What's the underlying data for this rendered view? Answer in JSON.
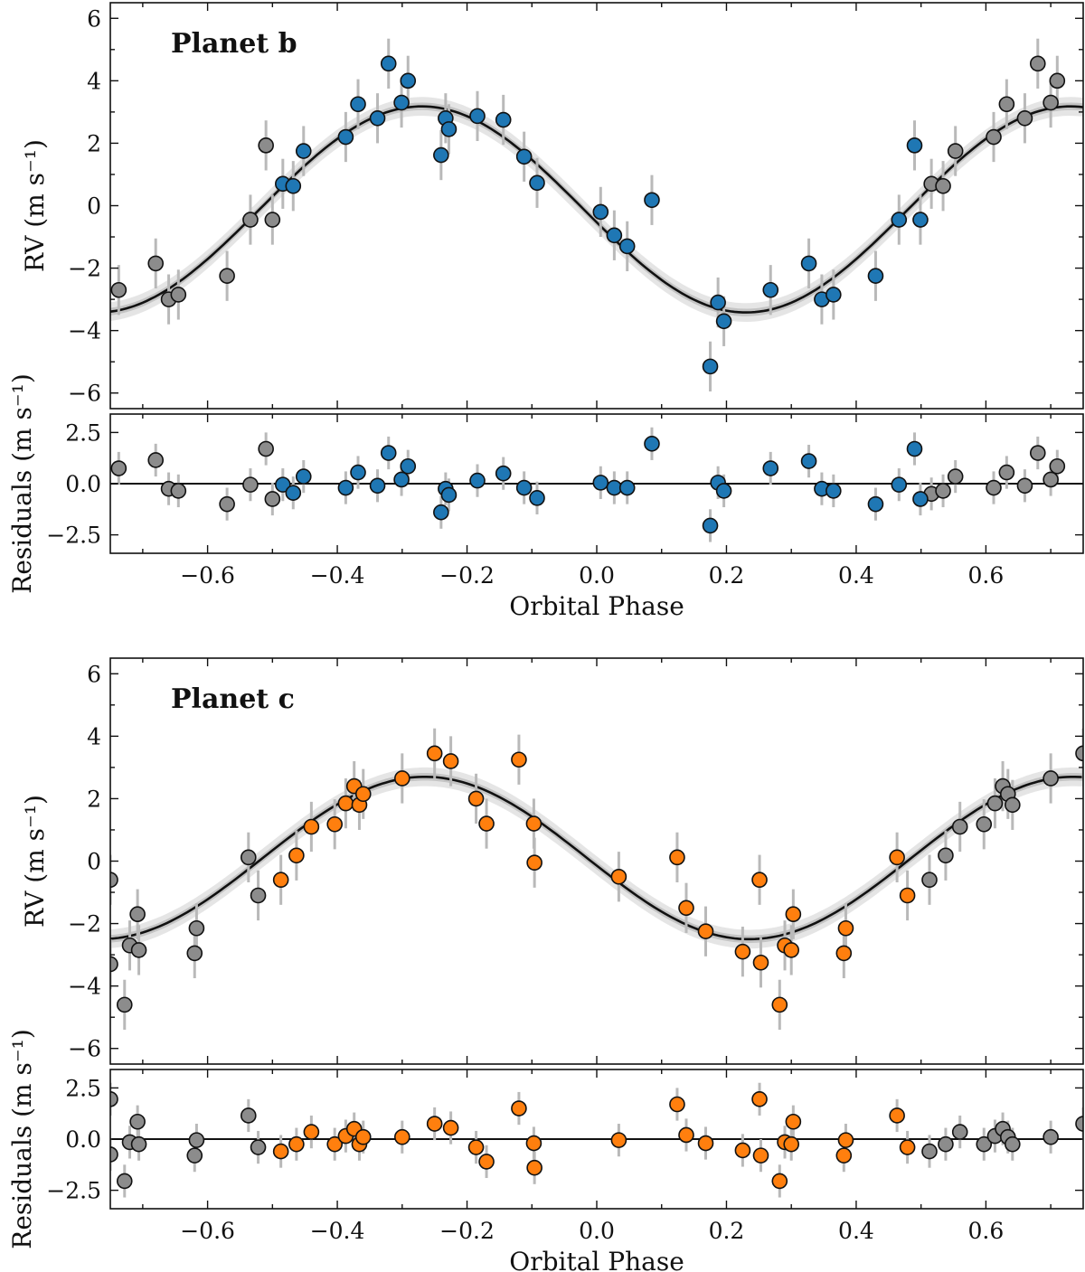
{
  "colors": {
    "planet_b": "#1f77b4",
    "planet_c": "#ff7f0e",
    "aliased": "#8c8c8c",
    "errorbar": "#b9b9b9"
  },
  "chart_data": [
    {
      "type": "scatter",
      "title": "Planet b",
      "panel": "rv",
      "xlabel": "",
      "ylabel": "RV (m s⁻¹)",
      "xlim": [
        -0.75,
        0.75
      ],
      "ylim": [
        -6.5,
        6.5
      ],
      "yticks": [
        -6,
        -4,
        -2,
        0,
        2,
        4,
        6
      ],
      "model": {
        "amplitude": 3.3,
        "offset": -0.12,
        "phase_of_max": -0.27,
        "band_inner": 0.12,
        "band_outer": 0.3
      },
      "error": 0.8,
      "series": [
        {
          "name": "Planet b data",
          "color": "#1f77b4",
          "x": [
            -0.484,
            -0.468,
            -0.452,
            -0.387,
            -0.368,
            -0.338,
            -0.321,
            -0.301,
            -0.291,
            -0.24,
            -0.233,
            -0.228,
            -0.184,
            -0.144,
            -0.112,
            -0.092,
            0.006,
            0.027,
            0.047,
            0.085,
            0.175,
            0.187,
            0.196,
            0.268,
            0.327,
            0.347,
            0.365,
            0.43,
            0.466,
            0.49,
            0.499
          ],
          "y": [
            0.7,
            0.63,
            1.75,
            2.2,
            3.25,
            2.8,
            4.55,
            3.3,
            4.0,
            1.62,
            2.8,
            2.45,
            2.87,
            2.75,
            1.57,
            0.73,
            -0.2,
            -0.95,
            -1.3,
            0.18,
            -5.15,
            -3.1,
            -3.7,
            -2.7,
            -1.85,
            -3.0,
            -2.85,
            -2.25,
            -0.45,
            1.93,
            -0.45
          ]
        },
        {
          "name": "Aliased data",
          "color": "#8c8c8c",
          "x": [
            -0.737,
            -0.68,
            -0.66,
            -0.645,
            -0.57,
            -0.534,
            -0.51,
            -0.5,
            0.516,
            0.534,
            0.553,
            0.612,
            0.632,
            0.66,
            0.68,
            0.7,
            0.71
          ],
          "y": [
            -2.7,
            -1.85,
            -3.0,
            -2.85,
            -2.25,
            -0.45,
            1.93,
            -0.45,
            0.7,
            0.63,
            1.75,
            2.2,
            3.25,
            2.8,
            4.55,
            3.3,
            4.0
          ]
        }
      ]
    },
    {
      "type": "scatter",
      "panel": "residuals",
      "xlabel": "Orbital Phase",
      "ylabel": "Residuals (m s⁻¹)",
      "xlim": [
        -0.75,
        0.75
      ],
      "ylim": [
        -3.4,
        3.4
      ],
      "yticks": [
        -2.5,
        0.0,
        2.5
      ],
      "xticks": [
        -0.6,
        -0.4,
        -0.2,
        0.0,
        0.2,
        0.4,
        0.6
      ],
      "error": 0.8,
      "series": [
        {
          "name": "Planet b residuals",
          "color": "#1f77b4",
          "x": [
            -0.484,
            -0.468,
            -0.452,
            -0.387,
            -0.368,
            -0.338,
            -0.321,
            -0.301,
            -0.291,
            -0.24,
            -0.233,
            -0.228,
            -0.184,
            -0.144,
            -0.112,
            -0.092,
            0.006,
            0.027,
            0.047,
            0.085,
            0.175,
            0.187,
            0.196,
            0.268,
            0.327,
            0.347,
            0.365,
            0.43,
            0.466,
            0.49,
            0.499
          ],
          "y": [
            -0.05,
            -0.45,
            0.35,
            -0.2,
            0.55,
            -0.1,
            1.5,
            0.2,
            0.85,
            -1.4,
            -0.25,
            -0.55,
            0.15,
            0.5,
            -0.2,
            -0.7,
            0.05,
            -0.2,
            -0.2,
            1.95,
            -2.05,
            0.05,
            -0.35,
            0.75,
            1.1,
            -0.25,
            -0.35,
            -1.0,
            -0.05,
            1.7,
            -0.75
          ]
        },
        {
          "name": "Aliased residuals",
          "color": "#8c8c8c",
          "x": [
            -0.737,
            -0.68,
            -0.66,
            -0.645,
            -0.57,
            -0.534,
            -0.51,
            -0.5,
            0.516,
            0.534,
            0.553,
            0.612,
            0.632,
            0.66,
            0.68,
            0.7,
            0.71
          ],
          "y": [
            0.75,
            1.15,
            -0.25,
            -0.35,
            -1.0,
            -0.05,
            1.7,
            -0.75,
            -0.5,
            -0.35,
            0.35,
            -0.2,
            0.55,
            -0.1,
            1.5,
            0.2,
            0.85
          ]
        }
      ]
    },
    {
      "type": "scatter",
      "title": "Planet c",
      "panel": "rv",
      "xlabel": "",
      "ylabel": "RV (m s⁻¹)",
      "xlim": [
        -0.75,
        0.75
      ],
      "ylim": [
        -6.5,
        6.5
      ],
      "yticks": [
        -6,
        -4,
        -2,
        0,
        2,
        4,
        6
      ],
      "model": {
        "amplitude": 2.6,
        "offset": 0.1,
        "phase_of_max": -0.265,
        "band_inner": 0.12,
        "band_outer": 0.3
      },
      "error": 0.8,
      "series": [
        {
          "name": "Planet c data",
          "color": "#ff7f0e",
          "x": [
            -0.487,
            -0.463,
            -0.44,
            -0.404,
            -0.387,
            -0.374,
            -0.366,
            -0.36,
            -0.3,
            -0.25,
            -0.225,
            -0.186,
            -0.17,
            -0.12,
            -0.097,
            -0.096,
            0.034,
            0.124,
            0.138,
            0.168,
            0.225,
            0.251,
            0.253,
            0.282,
            0.29,
            0.3,
            0.303,
            0.381,
            0.384,
            0.463,
            0.479
          ],
          "y": [
            -0.6,
            0.18,
            1.1,
            1.18,
            1.85,
            2.4,
            1.8,
            2.15,
            2.65,
            3.45,
            3.2,
            2.0,
            1.2,
            3.25,
            1.2,
            -0.05,
            -0.5,
            0.12,
            -1.5,
            -2.25,
            -2.9,
            -0.6,
            -3.25,
            -4.6,
            -2.7,
            -2.85,
            -1.7,
            -2.95,
            -2.15,
            0.12,
            -1.1
          ]
        },
        {
          "name": "Aliased data",
          "color": "#8c8c8c",
          "x": [
            -0.75,
            -0.75,
            -0.728,
            -0.72,
            -0.708,
            -0.706,
            -0.62,
            -0.617,
            -0.537,
            -0.522,
            0.513,
            0.538,
            0.56,
            0.597,
            0.614,
            0.626,
            0.634,
            0.641,
            0.7,
            0.75
          ],
          "y": [
            -0.6,
            -3.3,
            -4.6,
            -2.7,
            -1.7,
            -2.85,
            -2.95,
            -2.15,
            0.12,
            -1.1,
            -0.6,
            0.18,
            1.1,
            1.18,
            1.85,
            2.4,
            2.15,
            1.8,
            2.65,
            3.45
          ]
        }
      ]
    },
    {
      "type": "scatter",
      "panel": "residuals",
      "xlabel": "Orbital Phase",
      "ylabel": "Residuals (m s⁻¹)",
      "xlim": [
        -0.75,
        0.75
      ],
      "ylim": [
        -3.4,
        3.4
      ],
      "yticks": [
        -2.5,
        0.0,
        2.5
      ],
      "xticks": [
        -0.6,
        -0.4,
        -0.2,
        0.0,
        0.2,
        0.4,
        0.6
      ],
      "error": 0.8,
      "series": [
        {
          "name": "Planet c residuals",
          "color": "#ff7f0e",
          "x": [
            -0.487,
            -0.463,
            -0.44,
            -0.404,
            -0.387,
            -0.374,
            -0.366,
            -0.36,
            -0.3,
            -0.25,
            -0.225,
            -0.186,
            -0.17,
            -0.12,
            -0.097,
            -0.096,
            0.034,
            0.124,
            0.138,
            0.168,
            0.225,
            0.251,
            0.253,
            0.282,
            0.29,
            0.3,
            0.303,
            0.381,
            0.384,
            0.463,
            0.479
          ],
          "y": [
            -0.6,
            -0.25,
            0.35,
            -0.25,
            0.15,
            0.5,
            -0.25,
            0.1,
            0.1,
            0.75,
            0.55,
            -0.4,
            -1.1,
            1.5,
            -0.2,
            -1.4,
            -0.05,
            1.7,
            0.2,
            -0.2,
            -0.55,
            1.95,
            -0.8,
            -2.05,
            -0.15,
            -0.25,
            0.85,
            -0.8,
            -0.05,
            1.15,
            -0.4
          ]
        },
        {
          "name": "Aliased residuals",
          "color": "#8c8c8c",
          "x": [
            -0.75,
            -0.75,
            -0.728,
            -0.72,
            -0.708,
            -0.706,
            -0.62,
            -0.617,
            -0.537,
            -0.522,
            0.513,
            0.538,
            0.56,
            0.597,
            0.614,
            0.626,
            0.634,
            0.641,
            0.7,
            0.75
          ],
          "y": [
            1.95,
            -0.75,
            -2.05,
            -0.15,
            0.85,
            -0.25,
            -0.8,
            -0.05,
            1.15,
            -0.4,
            -0.6,
            -0.25,
            0.35,
            -0.25,
            0.15,
            0.5,
            0.1,
            -0.25,
            0.1,
            0.75
          ]
        }
      ]
    }
  ]
}
